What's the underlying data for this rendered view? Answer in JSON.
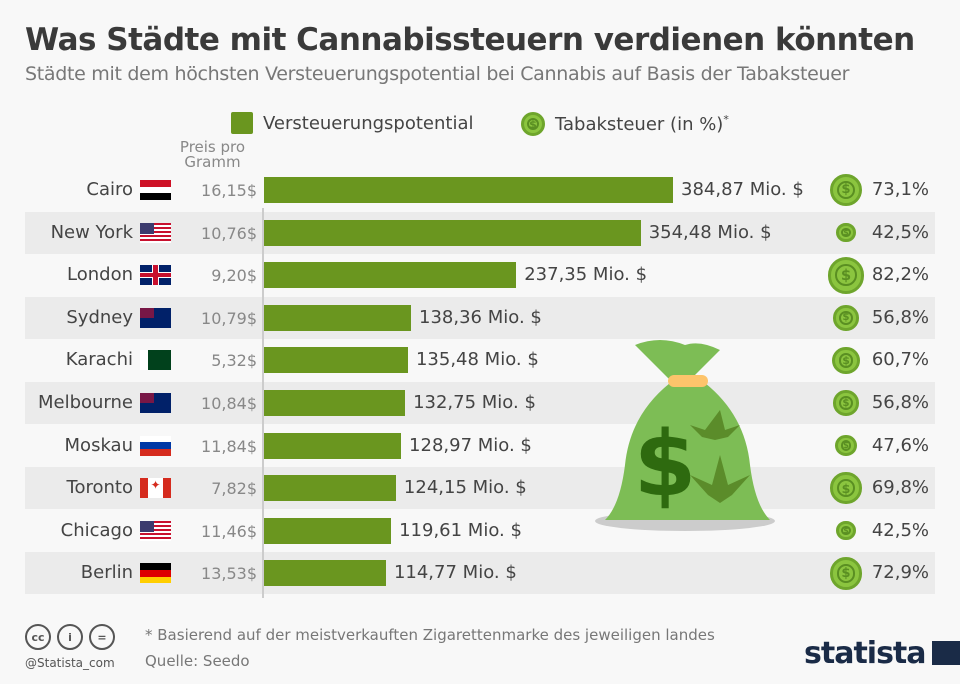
{
  "title": "Was Städte mit Cannabissteuern verdienen könnten",
  "subtitle": "Städte mit dem höchsten Versteuerungspotential bei Cannabis auf Basis der Tabaksteuer",
  "legend": {
    "bar": "Versteuerungspotential",
    "coin": "Tabaksteuer (in %)",
    "coin_mark": "*"
  },
  "price_header": "Preis pro Gramm",
  "colors": {
    "bar": "#6a961f",
    "coin": "#8bc53f",
    "row_alt": "#ebebeb"
  },
  "chart_data": {
    "type": "bar",
    "orientation": "horizontal",
    "categories": [
      "Cairo",
      "New York",
      "London",
      "Sydney",
      "Karachi",
      "Melbourne",
      "Moskau",
      "Toronto",
      "Chicago",
      "Berlin"
    ],
    "flags": [
      "egypt",
      "usa",
      "uk",
      "australia",
      "pakistan",
      "australia",
      "russia",
      "canada",
      "usa",
      "germany"
    ],
    "price_per_gram": [
      "16,15$",
      "10,76$",
      "9,20$",
      "10,79$",
      "5,32$",
      "10,84$",
      "11,84$",
      "7,82$",
      "11,46$",
      "13,53$"
    ],
    "series": [
      {
        "name": "Versteuerungspotential",
        "values": [
          384.87,
          354.48,
          237.35,
          138.36,
          135.48,
          132.75,
          128.97,
          124.15,
          119.61,
          114.77
        ],
        "labels": [
          "384,87 Mio. $",
          "354,48 Mio. $",
          "237,35 Mio. $",
          "138,36 Mio. $",
          "135,48 Mio. $",
          "132,75 Mio. $",
          "128,97 Mio. $",
          "124,15 Mio. $",
          "119,61 Mio. $",
          "114,77 Mio. $"
        ]
      },
      {
        "name": "Tabaksteuer (in %)",
        "values": [
          73.1,
          42.5,
          82.2,
          56.8,
          60.7,
          56.8,
          47.6,
          69.8,
          42.5,
          72.9
        ],
        "labels": [
          "73,1%",
          "42,5%",
          "82,2%",
          "56,8%",
          "60,7%",
          "56,8%",
          "47,6%",
          "69,8%",
          "42,5%",
          "72,9%"
        ]
      }
    ],
    "unit": "Mio. $",
    "grid": false,
    "legend_position": "top"
  },
  "footer": {
    "note": "* Basierend auf der meistverkauften Zigarettenmarke des jeweiligen landes",
    "source": "Quelle: Seedo",
    "handle": "@Statista_com",
    "logo": "statista"
  },
  "coin_symbol": "$"
}
